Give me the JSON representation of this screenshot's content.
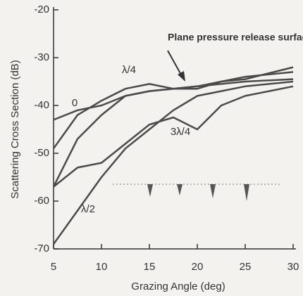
{
  "chart_data": {
    "type": "line",
    "x_label": "Grazing Angle (deg)",
    "y_label": "Scattering Cross Section (dB)",
    "x": [
      5,
      7.5,
      10,
      12.5,
      15,
      17.5,
      20,
      22.5,
      25,
      30
    ],
    "series": [
      {
        "name": "0",
        "color": "#4a4a4a",
        "values": [
          -43,
          -41,
          -40,
          -38,
          -37,
          -36.5,
          -36,
          -35,
          -34,
          -33
        ]
      },
      {
        "name": "λ/4",
        "color": "#4a4a4a",
        "values": [
          -49,
          -42,
          -39,
          -36.5,
          -35.5,
          -36.5,
          -36.5,
          -35,
          -34.5,
          -32
        ]
      },
      {
        "name": "Plane pressure release surface",
        "color": "#4a4a4a",
        "values": [
          -57,
          -47,
          -42,
          -38,
          -37,
          -36.5,
          -36,
          -35.5,
          -35,
          -34.5
        ]
      },
      {
        "name": "3λ/4",
        "color": "#4a4a4a",
        "values": [
          -57,
          -53,
          -52,
          -48,
          -44,
          -42.5,
          -45,
          -40,
          -38,
          -36
        ]
      },
      {
        "name": "λ/2",
        "color": "#4a4a4a",
        "values": [
          -69,
          -62,
          -55,
          -49,
          -45,
          -41,
          -38,
          -37,
          -36,
          -35
        ]
      }
    ],
    "xlim": [
      5,
      30
    ],
    "xticks": [
      5,
      10,
      15,
      20,
      25,
      30
    ],
    "ylim": [
      -70,
      -20
    ],
    "yticks": [
      -70,
      -60,
      -50,
      -40,
      -30,
      -20
    ]
  }
}
